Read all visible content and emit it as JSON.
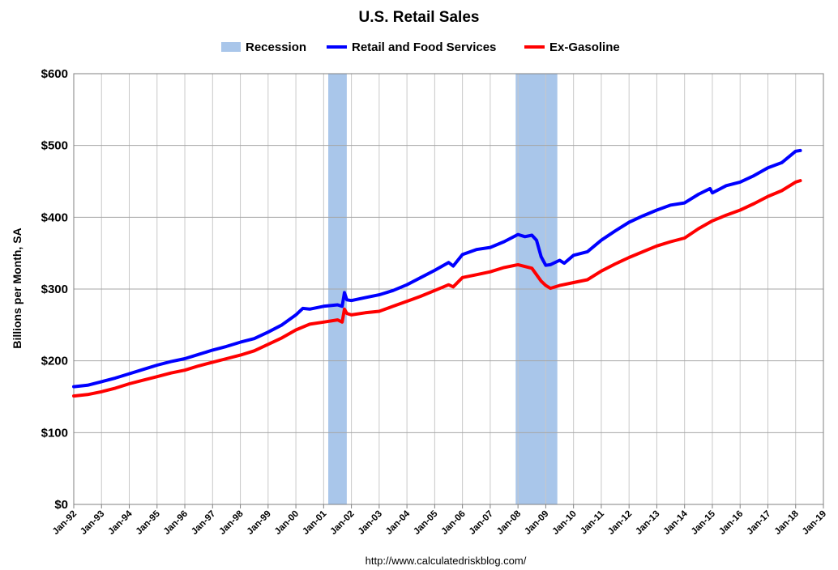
{
  "chart_data": {
    "type": "line",
    "title": "U.S. Retail Sales",
    "ylabel": "Billions per Month, SA",
    "xlabel": "",
    "source": "http://www.calculatedriskblog.com/",
    "ylim": [
      0,
      600
    ],
    "xlim": [
      "1992-01",
      "2019-01"
    ],
    "y_ticks": [
      0,
      100,
      200,
      300,
      400,
      500,
      600
    ],
    "y_tick_labels": [
      "$0",
      "$100",
      "$200",
      "$300",
      "$400",
      "$500",
      "$600"
    ],
    "x_ticks": [
      "1992-01",
      "1993-01",
      "1994-01",
      "1995-01",
      "1996-01",
      "1997-01",
      "1998-01",
      "1999-01",
      "2000-01",
      "2001-01",
      "2002-01",
      "2003-01",
      "2004-01",
      "2005-01",
      "2006-01",
      "2007-01",
      "2008-01",
      "2009-01",
      "2010-01",
      "2011-01",
      "2012-01",
      "2013-01",
      "2014-01",
      "2015-01",
      "2016-01",
      "2017-01",
      "2018-01",
      "2019-01"
    ],
    "x_tick_labels": [
      "Jan-92",
      "Jan-93",
      "Jan-94",
      "Jan-95",
      "Jan-96",
      "Jan-97",
      "Jan-98",
      "Jan-99",
      "Jan-00",
      "Jan-01",
      "Jan-02",
      "Jan-03",
      "Jan-04",
      "Jan-05",
      "Jan-06",
      "Jan-07",
      "Jan-08",
      "Jan-09",
      "Jan-10",
      "Jan-11",
      "Jan-12",
      "Jan-13",
      "Jan-14",
      "Jan-15",
      "Jan-16",
      "Jan-17",
      "Jan-18",
      "Jan-19"
    ],
    "grid": true,
    "legend_position": "top-center",
    "recessions": {
      "name": "Recession",
      "color": "#a9c6ea",
      "periods": [
        [
          "2001-03",
          "2001-11"
        ],
        [
          "2007-12",
          "2009-06"
        ]
      ]
    },
    "series": [
      {
        "name": "Retail and Food Services",
        "color": "#0000ff",
        "points": [
          [
            "1992-01",
            164
          ],
          [
            "1992-07",
            166
          ],
          [
            "1993-01",
            171
          ],
          [
            "1993-07",
            176
          ],
          [
            "1994-01",
            182
          ],
          [
            "1994-07",
            188
          ],
          [
            "1995-01",
            194
          ],
          [
            "1995-07",
            199
          ],
          [
            "1996-01",
            203
          ],
          [
            "1996-07",
            209
          ],
          [
            "1997-01",
            215
          ],
          [
            "1997-07",
            220
          ],
          [
            "1998-01",
            226
          ],
          [
            "1998-07",
            231
          ],
          [
            "1999-01",
            240
          ],
          [
            "1999-07",
            250
          ],
          [
            "2000-01",
            264
          ],
          [
            "2000-04",
            273
          ],
          [
            "2000-07",
            272
          ],
          [
            "2001-01",
            276
          ],
          [
            "2001-07",
            278
          ],
          [
            "2001-09",
            276
          ],
          [
            "2001-10",
            295
          ],
          [
            "2001-11",
            285
          ],
          [
            "2002-01",
            284
          ],
          [
            "2002-07",
            288
          ],
          [
            "2003-01",
            292
          ],
          [
            "2003-07",
            298
          ],
          [
            "2004-01",
            306
          ],
          [
            "2004-07",
            316
          ],
          [
            "2005-01",
            326
          ],
          [
            "2005-07",
            337
          ],
          [
            "2005-09",
            332
          ],
          [
            "2006-01",
            348
          ],
          [
            "2006-07",
            355
          ],
          [
            "2007-01",
            358
          ],
          [
            "2007-07",
            366
          ],
          [
            "2008-01",
            376
          ],
          [
            "2008-04",
            373
          ],
          [
            "2008-07",
            375
          ],
          [
            "2008-09",
            368
          ],
          [
            "2008-11",
            345
          ],
          [
            "2009-01",
            333
          ],
          [
            "2009-03",
            334
          ],
          [
            "2009-07",
            340
          ],
          [
            "2009-09",
            336
          ],
          [
            "2010-01",
            347
          ],
          [
            "2010-07",
            352
          ],
          [
            "2011-01",
            368
          ],
          [
            "2011-07",
            381
          ],
          [
            "2012-01",
            393
          ],
          [
            "2012-07",
            402
          ],
          [
            "2013-01",
            410
          ],
          [
            "2013-07",
            417
          ],
          [
            "2014-01",
            420
          ],
          [
            "2014-07",
            432
          ],
          [
            "2014-12",
            440
          ],
          [
            "2015-01",
            434
          ],
          [
            "2015-07",
            444
          ],
          [
            "2016-01",
            449
          ],
          [
            "2016-07",
            458
          ],
          [
            "2017-01",
            469
          ],
          [
            "2017-07",
            476
          ],
          [
            "2018-01",
            492
          ],
          [
            "2018-03",
            493
          ]
        ]
      },
      {
        "name": "Ex-Gasoline",
        "color": "#ff0000",
        "points": [
          [
            "1992-01",
            151
          ],
          [
            "1992-07",
            153
          ],
          [
            "1993-01",
            157
          ],
          [
            "1993-07",
            162
          ],
          [
            "1994-01",
            168
          ],
          [
            "1994-07",
            173
          ],
          [
            "1995-01",
            178
          ],
          [
            "1995-07",
            183
          ],
          [
            "1996-01",
            187
          ],
          [
            "1996-07",
            193
          ],
          [
            "1997-01",
            198
          ],
          [
            "1997-07",
            203
          ],
          [
            "1998-01",
            208
          ],
          [
            "1998-07",
            214
          ],
          [
            "1999-01",
            223
          ],
          [
            "1999-07",
            232
          ],
          [
            "2000-01",
            243
          ],
          [
            "2000-07",
            251
          ],
          [
            "2001-01",
            254
          ],
          [
            "2001-07",
            257
          ],
          [
            "2001-09",
            254
          ],
          [
            "2001-10",
            272
          ],
          [
            "2001-11",
            266
          ],
          [
            "2002-01",
            264
          ],
          [
            "2002-07",
            267
          ],
          [
            "2003-01",
            269
          ],
          [
            "2003-07",
            276
          ],
          [
            "2004-01",
            283
          ],
          [
            "2004-07",
            290
          ],
          [
            "2005-01",
            298
          ],
          [
            "2005-07",
            306
          ],
          [
            "2005-09",
            303
          ],
          [
            "2006-01",
            316
          ],
          [
            "2006-07",
            320
          ],
          [
            "2007-01",
            324
          ],
          [
            "2007-07",
            330
          ],
          [
            "2008-01",
            334
          ],
          [
            "2008-07",
            329
          ],
          [
            "2008-11",
            311
          ],
          [
            "2009-01",
            305
          ],
          [
            "2009-03",
            301
          ],
          [
            "2009-07",
            305
          ],
          [
            "2010-01",
            309
          ],
          [
            "2010-07",
            313
          ],
          [
            "2011-01",
            325
          ],
          [
            "2011-07",
            335
          ],
          [
            "2012-01",
            344
          ],
          [
            "2012-07",
            352
          ],
          [
            "2013-01",
            360
          ],
          [
            "2013-07",
            366
          ],
          [
            "2014-01",
            371
          ],
          [
            "2014-07",
            384
          ],
          [
            "2015-01",
            395
          ],
          [
            "2015-07",
            403
          ],
          [
            "2016-01",
            410
          ],
          [
            "2016-07",
            419
          ],
          [
            "2017-01",
            429
          ],
          [
            "2017-07",
            437
          ],
          [
            "2018-01",
            449
          ],
          [
            "2018-03",
            451
          ]
        ]
      }
    ]
  }
}
